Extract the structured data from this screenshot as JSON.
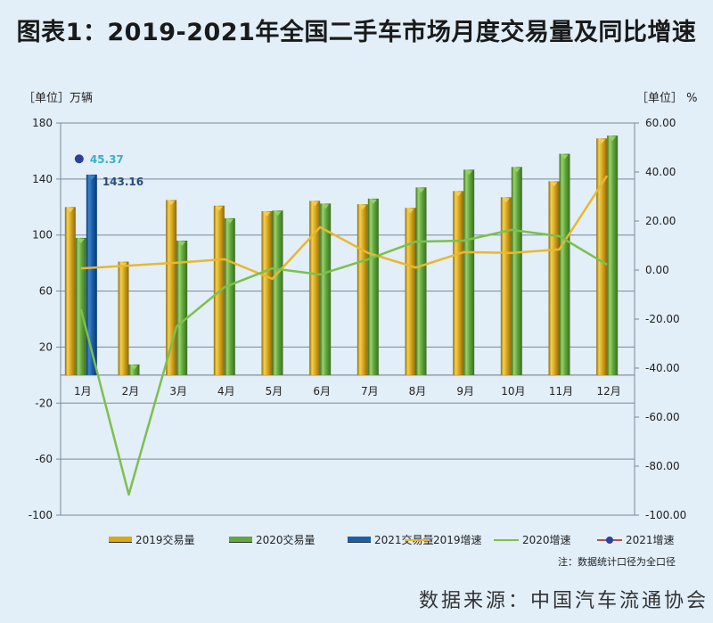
{
  "title": "图表1：2019-2021年全国二手车市场月度交易量及同比增速",
  "unit_left": "［单位］万辆",
  "unit_right": "［单位］ %",
  "note": "注：数据统计口径为全口径",
  "source": "数据来源：中国汽车流通协会",
  "colors": {
    "y2019": "#e0b020",
    "y2020": "#6ab04c",
    "y2021": "#1b5fa8",
    "l2019": "#e8b830",
    "l2020": "#7cc04e",
    "l2021": "#2f3f9a",
    "label2021": "#3ab0c8",
    "label143": "#2a4a80"
  },
  "legend": [
    {
      "label": "2019交易量",
      "type": "bar",
      "series": "y2019"
    },
    {
      "label": "2020交易量",
      "type": "bar",
      "series": "y2020"
    },
    {
      "label": "2021交易量",
      "type": "bar",
      "series": "y2021"
    },
    {
      "label": "2019增速",
      "type": "line",
      "series": "l2019"
    },
    {
      "label": "2020增速",
      "type": "line",
      "series": "l2020"
    },
    {
      "label": "2021增速",
      "type": "line-marker",
      "series": "l2021"
    }
  ],
  "chart_data": {
    "type": "bar+line",
    "title": "2019-2021年全国二手车市场月度交易量及同比增速",
    "categories": [
      "1月",
      "2月",
      "3月",
      "4月",
      "5月",
      "6月",
      "7月",
      "8月",
      "9月",
      "10月",
      "11月",
      "12月"
    ],
    "left_axis": {
      "label": "［单位］万辆",
      "range": [
        -100,
        180
      ],
      "ticks": [
        180,
        140,
        100,
        60,
        20,
        -20,
        -60,
        -100
      ]
    },
    "right_axis": {
      "label": "［单位］ %",
      "range": [
        -100,
        60
      ],
      "ticks": [
        "60.00",
        "40.00",
        "20.00",
        "0.00",
        "-20.00",
        "-40.00",
        "-60.00",
        "-80.00",
        "-100.00"
      ]
    },
    "bar_series": [
      {
        "name": "2019交易量",
        "values": [
          120,
          81,
          125,
          121,
          117,
          124.4,
          122,
          119.4,
          131.4,
          127,
          138.4,
          169
        ]
      },
      {
        "name": "2020交易量",
        "values": [
          98,
          7.6,
          96,
          112,
          117.5,
          122.5,
          126,
          134,
          146.7,
          148.6,
          158,
          171
        ]
      },
      {
        "name": "2021交易量",
        "values": [
          143.16,
          null,
          null,
          null,
          null,
          null,
          null,
          null,
          null,
          null,
          null,
          null
        ]
      }
    ],
    "line_series": [
      {
        "name": "2019增速",
        "values": [
          0.7,
          1.8,
          3,
          4.4,
          -3.6,
          17.5,
          7,
          1,
          7.3,
          7,
          8.4,
          38.5
        ]
      },
      {
        "name": "2020增速",
        "values": [
          -16,
          -91.6,
          -23,
          -7,
          0.7,
          -1.8,
          4.4,
          11.6,
          12,
          16.4,
          13.8,
          2.2
        ]
      },
      {
        "name": "2021增速",
        "values": [
          45.37,
          null,
          null,
          null,
          null,
          null,
          null,
          null,
          null,
          null,
          null,
          null
        ]
      }
    ],
    "data_labels": {
      "bar2021_jan": "143.16",
      "growth2021_jan": "45.37"
    },
    "grid": true,
    "legend_position": "bottom"
  }
}
